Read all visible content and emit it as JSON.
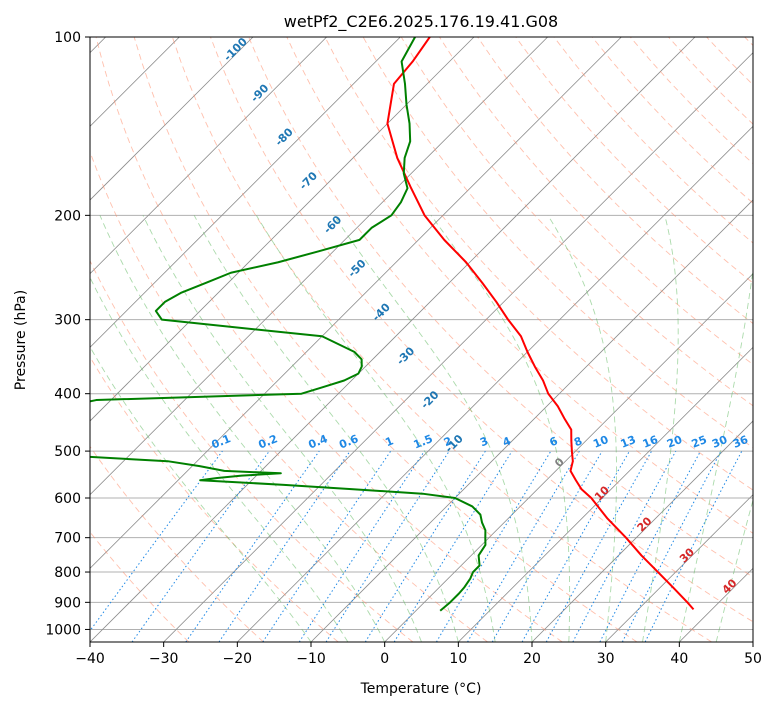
{
  "chart_data": {
    "type": "line",
    "title": "wetPf2_C2E6.2025.176.19.41.G08",
    "xlabel": "Temperature (°C)",
    "ylabel": "Pressure (hPa)",
    "xlim": [
      -40,
      50
    ],
    "ylim": [
      1050,
      100
    ],
    "yscale": "log",
    "grid": true,
    "x_ticks": [
      -40,
      -30,
      -20,
      -10,
      0,
      10,
      20,
      30,
      40,
      50
    ],
    "y_ticks": [
      100,
      200,
      300,
      400,
      500,
      600,
      700,
      800,
      900,
      1000
    ],
    "series": [
      {
        "color": "#ff0000",
        "p": [
          925,
          900,
          850,
          800,
          750,
          700,
          650,
          600,
          580,
          560,
          540,
          520,
          500,
          480,
          460,
          440,
          420,
          400,
          380,
          360,
          340,
          320,
          300,
          280,
          260,
          240,
          220,
          200,
          180,
          160,
          140,
          120,
          110,
          100
        ],
        "t": [
          37.5,
          35.7,
          31.8,
          27.6,
          23.1,
          18.6,
          13.5,
          8.5,
          6.0,
          4.0,
          2.0,
          1.0,
          -0.5,
          -2.0,
          -3.5,
          -6.0,
          -8.5,
          -11.5,
          -14.0,
          -17.0,
          -20.0,
          -23.0,
          -27.0,
          -31.0,
          -35.5,
          -40.5,
          -46.5,
          -52.5,
          -58.0,
          -64.0,
          -70.0,
          -74.5,
          -75.0,
          -76.0
        ]
      },
      {
        "color": "#008000",
        "p": [
          930,
          900,
          870,
          850,
          820,
          800,
          780,
          750,
          720,
          700,
          680,
          660,
          640,
          620,
          600,
          590,
          580,
          570,
          560,
          555,
          550,
          545,
          540,
          530,
          520,
          510,
          505,
          500,
          490,
          480,
          470,
          460,
          450,
          440,
          430,
          420,
          410,
          400,
          390,
          380,
          370,
          360,
          350,
          340,
          320,
          300,
          290,
          280,
          270,
          260,
          250,
          240,
          230,
          220,
          210,
          200,
          190,
          180,
          170,
          160,
          150,
          140,
          130,
          120,
          110,
          100
        ],
        "td": [
          3.3,
          3.5,
          3.5,
          3.4,
          3.0,
          2.5,
          2.5,
          1.0,
          0.5,
          -0.5,
          -1.5,
          -3.0,
          -4.3,
          -6.5,
          -10.0,
          -15.0,
          -25.0,
          -35.0,
          -47.0,
          -45.0,
          -42.0,
          -37.0,
          -45.0,
          -49.0,
          -54.0,
          -67.0,
          -67.5,
          -68.5,
          -69.0,
          -69.5,
          -71.0,
          -72.5,
          -75.0,
          -78.0,
          -77.0,
          -75.0,
          -72.0,
          -45.0,
          -43.0,
          -41.0,
          -40.0,
          -40.5,
          -41.5,
          -43.5,
          -50.0,
          -74.0,
          -76.0,
          -76.0,
          -75.0,
          -73.0,
          -71.0,
          -66.0,
          -62.0,
          -58.0,
          -58.0,
          -57.0,
          -57.5,
          -58.5,
          -61.0,
          -63.0,
          -64.5,
          -67.0,
          -70.0,
          -73.0,
          -76.5,
          -78.0
        ]
      }
    ],
    "isotherm_spacing": 10,
    "dry_adiabats_theta_c": [
      -30,
      -20,
      -10,
      0,
      10,
      20,
      30,
      40,
      50,
      60,
      70,
      80,
      90,
      100,
      110,
      120,
      130,
      140,
      150,
      160,
      170,
      180,
      190,
      200,
      210,
      220,
      230
    ],
    "moist_adiabats_start_c": [
      -10,
      -5,
      0,
      5,
      10,
      15,
      20,
      25,
      30,
      35,
      40,
      45
    ],
    "mixing_ratio_lines": [
      "0.1",
      "0.2",
      "0.4",
      "0.6",
      "1",
      "1.5",
      "2",
      "3",
      "4",
      "6",
      "8",
      "10",
      "13",
      "16",
      "20",
      "25",
      "30",
      "36"
    ],
    "blue_annotations": [
      "-100",
      "-90",
      "-80",
      "-70",
      "-60",
      "-50",
      "-40",
      "-30",
      "-20",
      "-10"
    ],
    "red_annotations": [
      "0",
      "10",
      "20",
      "30",
      "40"
    ],
    "colors": {
      "temperature": "#ff0000",
      "dewpoint": "#008000",
      "isotherm": "#8c8c8c",
      "dry_adiabat": "#ff8c69",
      "moist_adiabat": "#66bb66",
      "mixing_ratio": "#1e88e5",
      "blue_annotation": "#1f77b4",
      "red_annotation": "#d62728",
      "zero_annotation": "#808080"
    }
  }
}
